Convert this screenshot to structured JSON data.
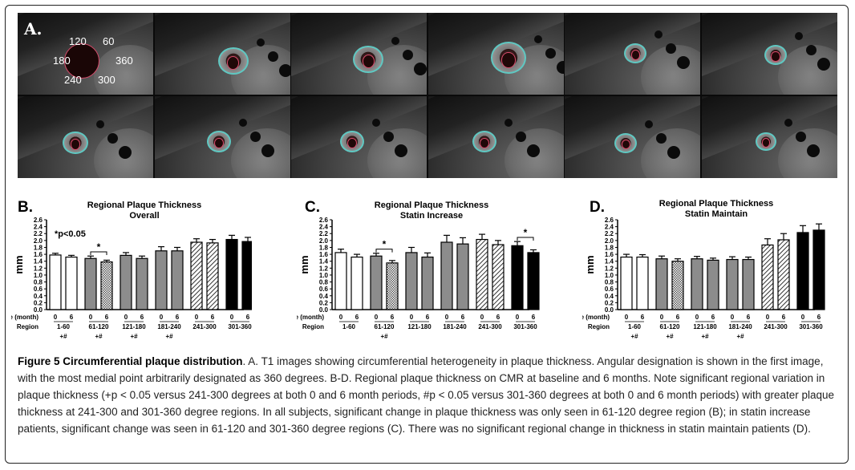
{
  "panel_a": {
    "letter": "A.",
    "angles": [
      "120",
      "60",
      "180",
      "360",
      "240",
      "300"
    ]
  },
  "charts": {
    "b": {
      "letter": "B.",
      "title_line1": "Regional Plaque Thickness",
      "title_line2": "Overall",
      "annotation": "*p<0.05"
    },
    "c": {
      "letter": "C.",
      "title_line1": "Regional Plaque Thickness",
      "title_line2": "Statin Increase"
    },
    "d": {
      "letter": "D.",
      "title_line1": "Regional Plaque Thickness",
      "title_line2": "Statin Maintain"
    }
  },
  "chart_data": [
    {
      "type": "bar",
      "title": "Regional Plaque Thickness Overall",
      "ylabel": "mm",
      "ylim": [
        0,
        2.6
      ],
      "yticks": [
        "0.0",
        "0.2",
        "0.4",
        "0.6",
        "0.8",
        "1.0",
        "1.2",
        "1.4",
        "1.6",
        "1.8",
        "2.0",
        "2.2",
        "2.4",
        "2.6"
      ],
      "time_label": "me (month)",
      "region_label": "Region",
      "times": [
        "0",
        "6",
        "0",
        "6",
        "0",
        "6",
        "0",
        "6",
        "0",
        "6",
        "0",
        "6"
      ],
      "regions": [
        "1-60",
        "61-120",
        "121-180",
        "181-240",
        "241-300",
        "301-360"
      ],
      "region_marks": [
        "+#",
        "+#",
        "+#",
        "+#",
        "",
        ""
      ],
      "values": [
        1.58,
        1.52,
        1.48,
        1.38,
        1.57,
        1.48,
        1.7,
        1.7,
        1.95,
        1.93,
        2.03,
        1.97
      ],
      "errors": [
        0.05,
        0.05,
        0.07,
        0.05,
        0.08,
        0.07,
        0.12,
        0.1,
        0.1,
        0.1,
        0.12,
        0.12
      ],
      "significance": [
        {
          "pair": [
            2,
            3
          ],
          "label": "*"
        }
      ]
    },
    {
      "type": "bar",
      "title": "Regional Plaque Thickness Statin Increase",
      "ylabel": "mm",
      "ylim": [
        0,
        2.6
      ],
      "yticks": [
        "0.0",
        "0.2",
        "0.4",
        "0.6",
        "0.8",
        "1.0",
        "1.2",
        "1.4",
        "1.6",
        "1.8",
        "2.0",
        "2.2",
        "2.4",
        "2.6"
      ],
      "time_label": "Time (month)",
      "region_label": "Region",
      "times": [
        "0",
        "6",
        "0",
        "6",
        "0",
        "6",
        "0",
        "6",
        "0",
        "6",
        "0",
        "6"
      ],
      "regions": [
        "1-60",
        "61-120",
        "121-180",
        "181-240",
        "241-300",
        "301-360"
      ],
      "region_marks": [
        "",
        "+#",
        "",
        "",
        "",
        ""
      ],
      "values": [
        1.65,
        1.52,
        1.55,
        1.35,
        1.65,
        1.52,
        1.95,
        1.9,
        2.03,
        1.88,
        1.85,
        1.65
      ],
      "errors": [
        0.1,
        0.08,
        0.08,
        0.07,
        0.15,
        0.12,
        0.2,
        0.18,
        0.15,
        0.12,
        0.12,
        0.08
      ],
      "significance": [
        {
          "pair": [
            2,
            3
          ],
          "label": "*"
        },
        {
          "pair": [
            10,
            11
          ],
          "label": "*"
        }
      ]
    },
    {
      "type": "bar",
      "title": "Regional Plaque Thickness Statin Maintain",
      "ylabel": "mm",
      "ylim": [
        0,
        2.6
      ],
      "yticks": [
        "0.0",
        "0.2",
        "0.4",
        "0.6",
        "0.8",
        "1.0",
        "1.2",
        "1.4",
        "1.6",
        "1.8",
        "2.0",
        "2.2",
        "2.4",
        "2.6"
      ],
      "time_label": "Time (month)",
      "region_label": "Region",
      "times": [
        "0",
        "6",
        "0",
        "6",
        "0",
        "6",
        "0",
        "6",
        "0",
        "6",
        "0",
        "6"
      ],
      "regions": [
        "1-60",
        "61-120",
        "121-180",
        "181-240",
        "241-300",
        "301-360"
      ],
      "region_marks": [
        "+#",
        "+#",
        "+#",
        "+#",
        "",
        ""
      ],
      "values": [
        1.52,
        1.52,
        1.47,
        1.4,
        1.47,
        1.43,
        1.45,
        1.45,
        1.87,
        2.02,
        2.23,
        2.3
      ],
      "errors": [
        0.08,
        0.07,
        0.08,
        0.07,
        0.07,
        0.06,
        0.08,
        0.07,
        0.18,
        0.18,
        0.2,
        0.18
      ],
      "significance": []
    }
  ],
  "colors": {
    "white_bar": "#ffffff",
    "gray_bar": "#8c8c8c",
    "black_bar": "#000000",
    "contour_outer": "#5fc8c2",
    "contour_inner": "#d84b6b"
  },
  "caption": {
    "bold": "Figure 5 Circumferential plaque distribution",
    "text": ". A. T1 images showing circumferential heterogeneity in plaque thickness. Angular designation is shown in the first image, with the most medial point arbitrarily designated as 360 degrees. B-D. Regional plaque thickness on CMR at baseline and 6 months. Note significant regional variation in plaque thickness (+p < 0.05 versus 241-300 degrees at both 0 and 6 month periods, #p < 0.05 versus 301-360 degrees at both 0 and 6 month periods) with greater plaque thickness at 241-300 and 301-360 degree regions. In all subjects, significant change in plaque thickness was only seen in 61-120 degree region (B); in statin increase patients, significant change was seen in 61-120 and 301-360 degree regions (C). There was no significant regional change in thickness in statin maintain patients (D)."
  }
}
